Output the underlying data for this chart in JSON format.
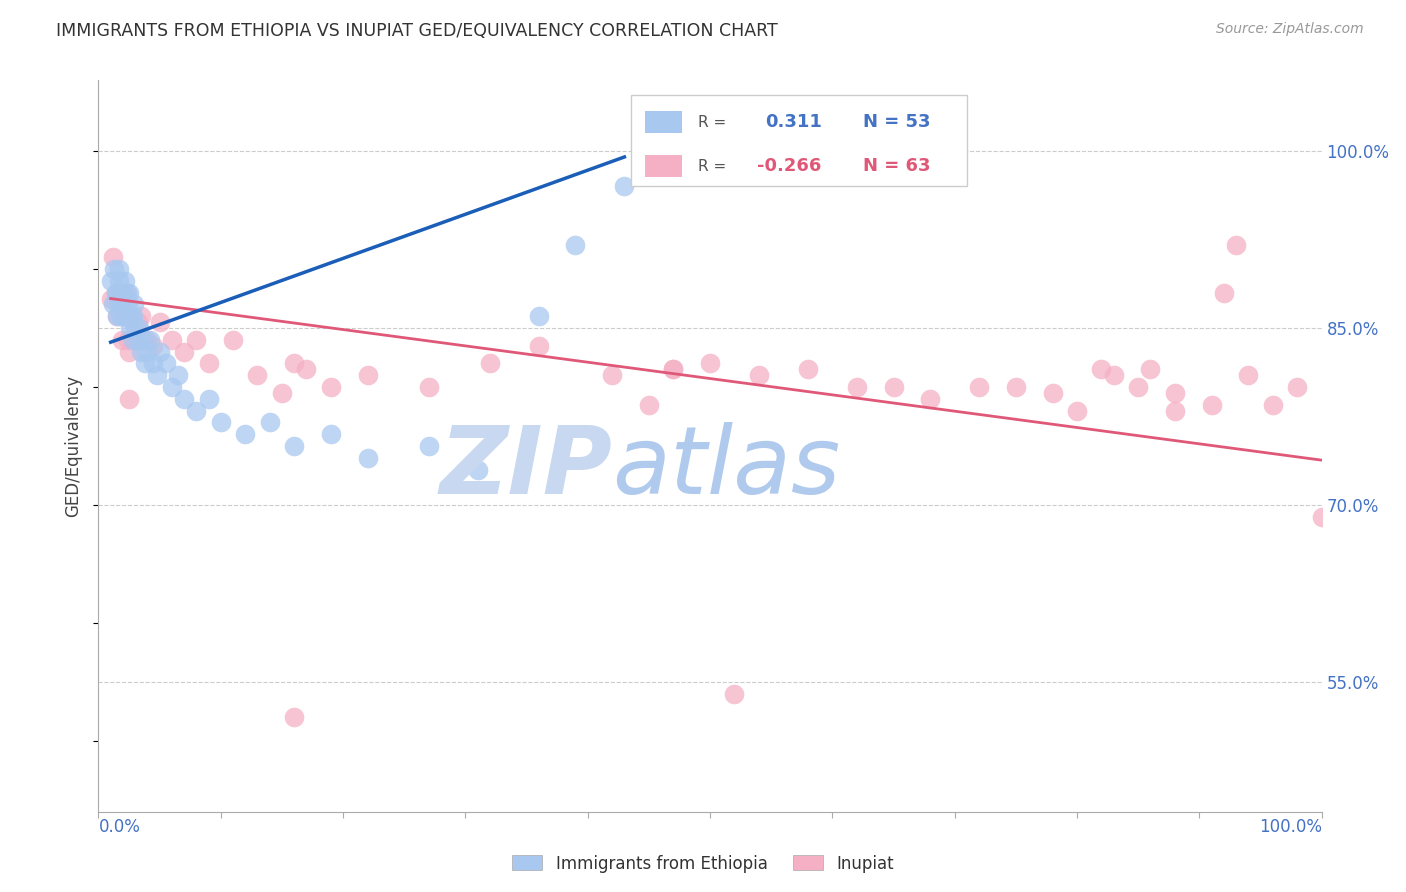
{
  "title": "IMMIGRANTS FROM ETHIOPIA VS INUPIAT GED/EQUIVALENCY CORRELATION CHART",
  "source": "Source: ZipAtlas.com",
  "ylabel": "GED/Equivalency",
  "xlim": [
    0.0,
    1.0
  ],
  "ylim": [
    0.44,
    1.06
  ],
  "yticks": [
    0.55,
    0.7,
    0.85,
    1.0
  ],
  "ytick_labels": [
    "55.0%",
    "70.0%",
    "85.0%",
    "100.0%"
  ],
  "blue_color": "#A8C8F0",
  "pink_color": "#F5B0C5",
  "blue_line_color": "#1A5EB8",
  "pink_line_color": "#E05878",
  "axis_label_color": "#4472C4",
  "watermark_zip_color": "#C8D8F0",
  "watermark_atlas_color": "#B0CAEE",
  "ethiopia_x": [
    0.01,
    0.012,
    0.013,
    0.014,
    0.015,
    0.015,
    0.016,
    0.017,
    0.017,
    0.018,
    0.018,
    0.019,
    0.02,
    0.021,
    0.022,
    0.022,
    0.023,
    0.023,
    0.024,
    0.025,
    0.026,
    0.027,
    0.028,
    0.028,
    0.029,
    0.03,
    0.032,
    0.033,
    0.035,
    0.037,
    0.038,
    0.04,
    0.042,
    0.045,
    0.048,
    0.05,
    0.055,
    0.06,
    0.065,
    0.07,
    0.08,
    0.09,
    0.1,
    0.12,
    0.14,
    0.16,
    0.19,
    0.22,
    0.27,
    0.31,
    0.36,
    0.39,
    0.43
  ],
  "ethiopia_y": [
    0.89,
    0.87,
    0.9,
    0.88,
    0.86,
    0.88,
    0.87,
    0.89,
    0.9,
    0.88,
    0.86,
    0.87,
    0.88,
    0.86,
    0.87,
    0.89,
    0.88,
    0.86,
    0.87,
    0.88,
    0.85,
    0.86,
    0.84,
    0.86,
    0.87,
    0.85,
    0.84,
    0.85,
    0.83,
    0.84,
    0.82,
    0.83,
    0.84,
    0.82,
    0.81,
    0.83,
    0.82,
    0.8,
    0.81,
    0.79,
    0.78,
    0.79,
    0.77,
    0.76,
    0.77,
    0.75,
    0.76,
    0.74,
    0.75,
    0.73,
    0.86,
    0.92,
    0.97
  ],
  "inupiat_x": [
    0.01,
    0.012,
    0.014,
    0.015,
    0.016,
    0.018,
    0.019,
    0.02,
    0.022,
    0.024,
    0.025,
    0.027,
    0.028,
    0.03,
    0.032,
    0.035,
    0.04,
    0.045,
    0.05,
    0.06,
    0.07,
    0.08,
    0.09,
    0.11,
    0.13,
    0.16,
    0.19,
    0.22,
    0.27,
    0.32,
    0.36,
    0.42,
    0.47,
    0.5,
    0.54,
    0.58,
    0.62,
    0.65,
    0.68,
    0.72,
    0.75,
    0.78,
    0.82,
    0.85,
    0.88,
    0.91,
    0.94,
    0.96,
    0.98,
    1.0,
    0.025,
    0.15,
    0.17,
    0.45,
    0.47,
    0.8,
    0.83,
    0.86,
    0.88,
    0.92,
    0.16,
    0.52,
    0.93
  ],
  "inupiat_y": [
    0.875,
    0.91,
    0.88,
    0.86,
    0.875,
    0.87,
    0.84,
    0.86,
    0.88,
    0.84,
    0.83,
    0.86,
    0.855,
    0.84,
    0.855,
    0.86,
    0.84,
    0.835,
    0.855,
    0.84,
    0.83,
    0.84,
    0.82,
    0.84,
    0.81,
    0.82,
    0.8,
    0.81,
    0.8,
    0.82,
    0.835,
    0.81,
    0.815,
    0.82,
    0.81,
    0.815,
    0.8,
    0.8,
    0.79,
    0.8,
    0.8,
    0.795,
    0.815,
    0.8,
    0.795,
    0.785,
    0.81,
    0.785,
    0.8,
    0.69,
    0.79,
    0.795,
    0.815,
    0.785,
    0.815,
    0.78,
    0.81,
    0.815,
    0.78,
    0.88,
    0.52,
    0.54,
    0.92
  ],
  "eth_line_x": [
    0.01,
    0.43
  ],
  "eth_line_y": [
    0.838,
    0.995
  ],
  "inu_line_x": [
    0.01,
    1.0
  ],
  "inu_line_y": [
    0.875,
    0.738
  ]
}
